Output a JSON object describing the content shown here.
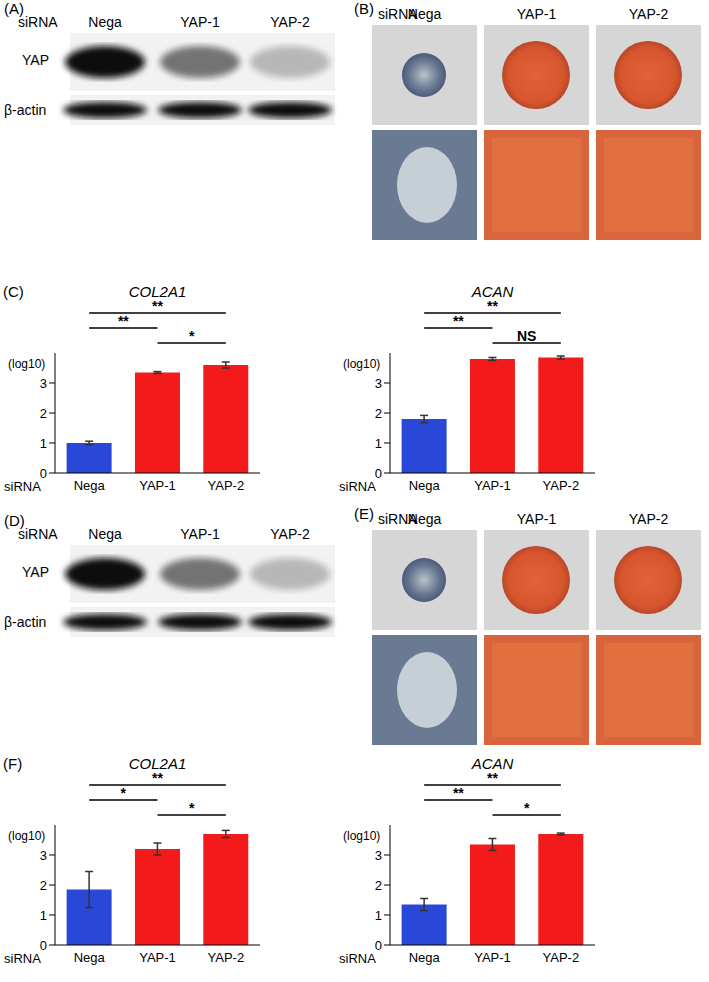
{
  "panels": [
    {
      "label": "(A)",
      "type": "western_blot",
      "header": "siRNA",
      "lanes": [
        "Nega",
        "YAP-1",
        "YAP-2"
      ],
      "rows": [
        "YAP",
        "β-actin"
      ]
    },
    {
      "label": "(B)",
      "type": "histology",
      "header": "siRNA",
      "columns": [
        "Nega",
        "YAP-1",
        "YAP-2"
      ]
    },
    {
      "label": "(D)",
      "type": "western_blot",
      "header": "siRNA",
      "lanes": [
        "Nega",
        "YAP-1",
        "YAP-2"
      ],
      "rows": [
        "YAP",
        "β-actin"
      ]
    },
    {
      "label": "(E)",
      "type": "histology",
      "header": "siRNA",
      "columns": [
        "Nega",
        "YAP-1",
        "YAP-2"
      ]
    }
  ],
  "chart_data": [
    {
      "type": "bar",
      "panel": "(C)",
      "title": "COL2A1",
      "ylabel": "(log10)",
      "xlabel": "siRNA",
      "categories": [
        "Nega",
        "YAP-1",
        "YAP-2"
      ],
      "values": [
        1.0,
        3.35,
        3.6
      ],
      "errors": [
        0.06,
        0.03,
        0.1
      ],
      "colors": [
        "#2a48d8",
        "#f21a1a",
        "#f21a1a"
      ],
      "ylim": [
        0,
        4
      ],
      "yticks": [
        0,
        1,
        2,
        3
      ],
      "significance": [
        {
          "from": "Nega",
          "to": "YAP-2",
          "label": "**"
        },
        {
          "from": "Nega",
          "to": "YAP-1",
          "label": "**"
        },
        {
          "from": "YAP-1",
          "to": "YAP-2",
          "label": "*"
        }
      ]
    },
    {
      "type": "bar",
      "panel": "(C)",
      "title": "ACAN",
      "ylabel": "(log10)",
      "xlabel": "siRNA",
      "categories": [
        "Nega",
        "YAP-1",
        "YAP-2"
      ],
      "values": [
        1.8,
        3.8,
        3.85
      ],
      "errors": [
        0.12,
        0.05,
        0.05
      ],
      "colors": [
        "#2a48d8",
        "#f21a1a",
        "#f21a1a"
      ],
      "ylim": [
        0,
        4
      ],
      "yticks": [
        0,
        1,
        2,
        3
      ],
      "significance": [
        {
          "from": "Nega",
          "to": "YAP-2",
          "label": "**"
        },
        {
          "from": "Nega",
          "to": "YAP-1",
          "label": "**"
        },
        {
          "from": "YAP-1",
          "to": "YAP-2",
          "label": "NS"
        }
      ]
    },
    {
      "type": "bar",
      "panel": "(F)",
      "title": "COL2A1",
      "ylabel": "(log10)",
      "xlabel": "siRNA",
      "categories": [
        "Nega",
        "YAP-1",
        "YAP-2"
      ],
      "values": [
        1.85,
        3.2,
        3.7
      ],
      "errors": [
        0.6,
        0.2,
        0.12
      ],
      "colors": [
        "#2a48d8",
        "#f21a1a",
        "#f21a1a"
      ],
      "ylim": [
        0,
        4
      ],
      "yticks": [
        0,
        1,
        2,
        3
      ],
      "significance": [
        {
          "from": "Nega",
          "to": "YAP-2",
          "label": "**"
        },
        {
          "from": "Nega",
          "to": "YAP-1",
          "label": "*"
        },
        {
          "from": "YAP-1",
          "to": "YAP-2",
          "label": "*"
        }
      ]
    },
    {
      "type": "bar",
      "panel": "(F)",
      "title": "ACAN",
      "ylabel": "(log10)",
      "xlabel": "siRNA",
      "categories": [
        "Nega",
        "YAP-1",
        "YAP-2"
      ],
      "values": [
        1.35,
        3.35,
        3.7
      ],
      "errors": [
        0.2,
        0.2,
        0.03
      ],
      "colors": [
        "#2a48d8",
        "#f21a1a",
        "#f21a1a"
      ],
      "ylim": [
        0,
        4
      ],
      "yticks": [
        0,
        1,
        2,
        3
      ],
      "significance": [
        {
          "from": "Nega",
          "to": "YAP-2",
          "label": "**"
        },
        {
          "from": "Nega",
          "to": "YAP-1",
          "label": "**"
        },
        {
          "from": "YAP-1",
          "to": "YAP-2",
          "label": "*"
        }
      ]
    }
  ]
}
